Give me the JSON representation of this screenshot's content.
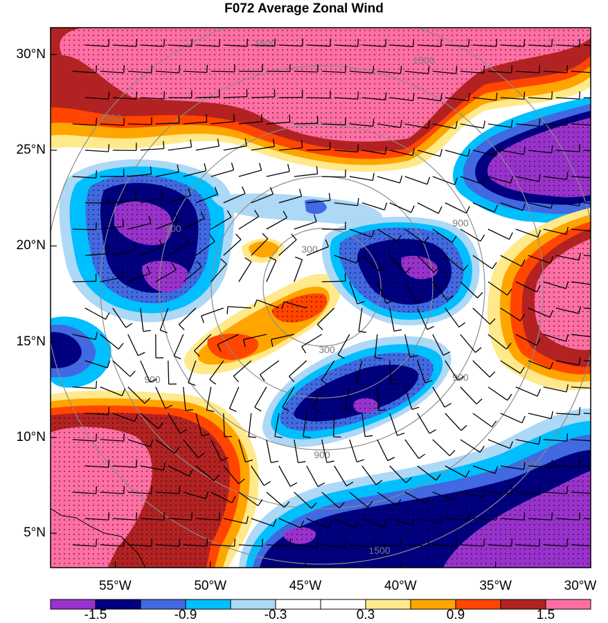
{
  "title": "F072 Average Zonal Wind",
  "lat_ticks": [
    {
      "label": "30°N",
      "value": 30
    },
    {
      "label": "25°N",
      "value": 25
    },
    {
      "label": "20°N",
      "value": 20
    },
    {
      "label": "15°N",
      "value": 15
    },
    {
      "label": "10°N",
      "value": 10
    },
    {
      "label": "5°N",
      "value": 5
    }
  ],
  "lon_ticks": [
    {
      "label": "55°W",
      "value": -55
    },
    {
      "label": "50°W",
      "value": -50
    },
    {
      "label": "45°W",
      "value": -45
    },
    {
      "label": "40°W",
      "value": -40
    },
    {
      "label": "35°W",
      "value": -35
    },
    {
      "label": "30°W",
      "value": -30
    }
  ],
  "range_ring_labels": [
    "300",
    "300",
    "900",
    "900",
    "900",
    "900",
    "900",
    "1500",
    "1500",
    "1500",
    "1500",
    "1500"
  ],
  "colorbar": {
    "colors": [
      "#9932cc",
      "#000080",
      "#4169e1",
      "#00bfff",
      "#add8f6",
      "#ffffff",
      "#ffffff",
      "#ffe98a",
      "#ffa500",
      "#ff4500",
      "#b22222",
      "#ff6fa3"
    ],
    "labels": [
      "-1.5",
      "-0.9",
      "-0.3",
      "0.3",
      "0.9",
      "1.5"
    ]
  },
  "colors": {
    "frame": "#000000",
    "rings": "#8c8c8c",
    "barbs": "#000000"
  }
}
